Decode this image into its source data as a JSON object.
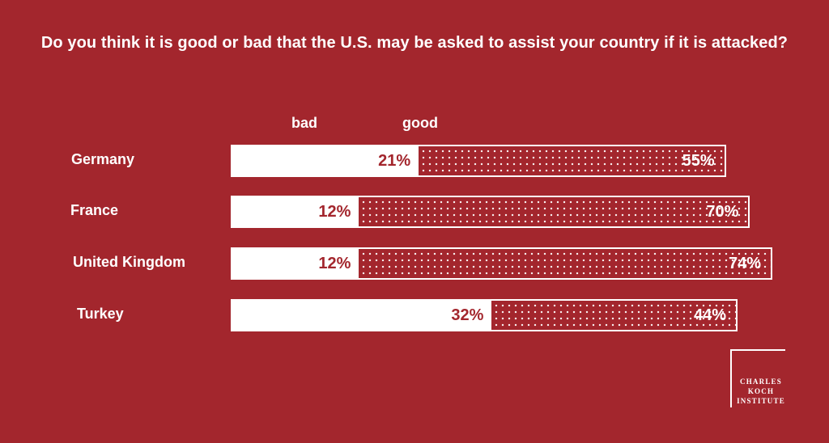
{
  "title": "Do you think it is good or bad that the U.S. may be asked to assist your country if it is attacked?",
  "legend": {
    "bad": "bad",
    "good": "good"
  },
  "colors": {
    "background": "#a3262d",
    "bad": "#ffffff",
    "good_dots": "#ffffff"
  },
  "logo": {
    "line1": "CHARLES",
    "line2": "KOCH",
    "line3": "INSTITUTE"
  },
  "chart_data": {
    "type": "bar",
    "orientation": "horizontal-stacked",
    "categories": [
      "Germany",
      "France",
      "United Kingdom",
      "Turkey"
    ],
    "series": [
      {
        "name": "bad",
        "values": [
          21,
          12,
          12,
          32
        ]
      },
      {
        "name": "good",
        "values": [
          55,
          70,
          74,
          44
        ]
      }
    ],
    "labels": {
      "bad": [
        "21%",
        "12%",
        "12%",
        "32%"
      ],
      "good": [
        "55%",
        "70%",
        "74%",
        "44%"
      ]
    }
  }
}
